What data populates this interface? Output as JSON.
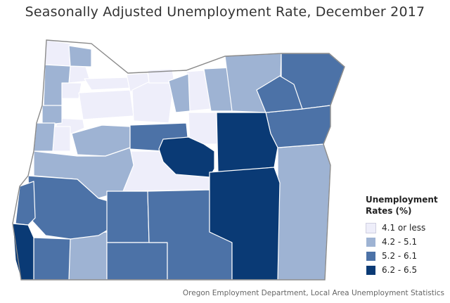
{
  "title": "Seasonally Adjusted Unemployment Rate, December 2017",
  "legend": {
    "title": "Unemployment Rates (%)",
    "items": [
      {
        "label": "4.1 or less",
        "color": "#EEEEFA"
      },
      {
        "label": "4.2 - 5.1",
        "color": "#9EB3D3"
      },
      {
        "label": "5.2 - 6.1",
        "color": "#4C72A7"
      },
      {
        "label": "6.2 - 6.5",
        "color": "#0A3A75"
      }
    ]
  },
  "source": "Oregon Employment Department, Local Area Unemployment Statistics",
  "colors": {
    "class1": "#EEEEFA",
    "class2": "#9EB3D3",
    "class3": "#4C72A7",
    "class4": "#0A3A75",
    "border": "#ffffff",
    "state_outline": "#8a8a8a"
  }
}
